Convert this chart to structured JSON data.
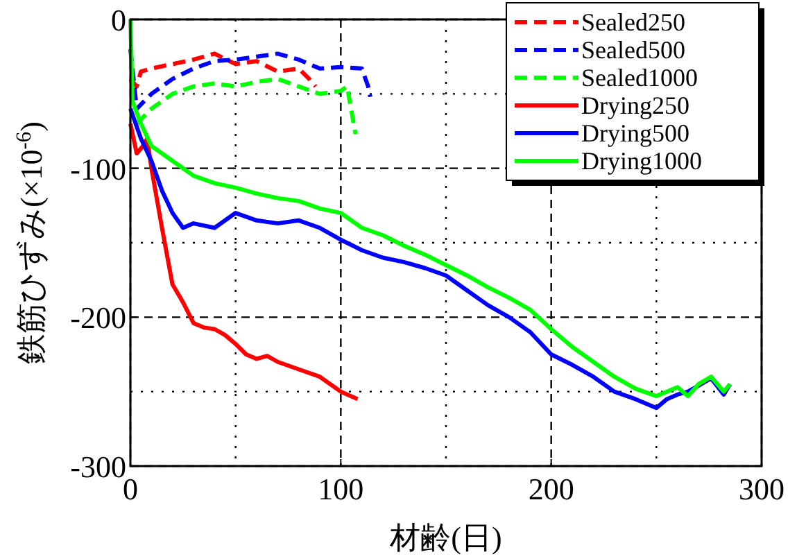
{
  "chart_data": {
    "type": "line",
    "xlabel": "材齢(日)",
    "ylabel": "鉄筋ひずみ(×10$^{-6}$)",
    "xlim": [
      0,
      300
    ],
    "ylim": [
      -300,
      0
    ],
    "xticks": [
      0,
      100,
      200,
      300
    ],
    "yticks": [
      -300,
      -200,
      -100,
      0
    ],
    "grid": true,
    "legend": "top right",
    "series": [
      {
        "name": "Sealed250",
        "color": "#ff0000",
        "line_style": "dashed",
        "x": [
          0,
          3,
          5,
          10,
          20,
          30,
          40,
          50,
          60,
          70,
          80,
          85,
          88
        ],
        "values": [
          -40,
          -45,
          -35,
          -33,
          -30,
          -27,
          -23,
          -30,
          -28,
          -35,
          -33,
          -40,
          -45
        ]
      },
      {
        "name": "Sealed500",
        "color": "#0000ff",
        "line_style": "dashed",
        "x": [
          0,
          3,
          10,
          20,
          30,
          40,
          50,
          60,
          70,
          80,
          90,
          100,
          110,
          113,
          114
        ],
        "values": [
          -20,
          -60,
          -50,
          -40,
          -33,
          -28,
          -27,
          -25,
          -23,
          -27,
          -33,
          -32,
          -33,
          -45,
          -52
        ]
      },
      {
        "name": "Sealed1000",
        "color": "#00ff00",
        "line_style": "dashed",
        "x": [
          3,
          10,
          20,
          30,
          40,
          50,
          60,
          70,
          80,
          90,
          100,
          103,
          107
        ],
        "values": [
          -70,
          -60,
          -50,
          -45,
          -43,
          -45,
          -42,
          -40,
          -45,
          -50,
          -48,
          -45,
          -77
        ]
      },
      {
        "name": "Drying250",
        "color": "#ff0000",
        "line_style": "solid",
        "x": [
          0,
          3,
          6,
          8,
          10,
          15,
          20,
          25,
          30,
          35,
          40,
          45,
          50,
          55,
          60,
          65,
          70,
          80,
          90,
          100,
          108
        ],
        "values": [
          -70,
          -90,
          -85,
          -80,
          -100,
          -140,
          -178,
          -190,
          -204,
          -207,
          -208,
          -212,
          -218,
          -225,
          -228,
          -226,
          -230,
          -235,
          -240,
          -250,
          -255
        ]
      },
      {
        "name": "Drying500",
        "color": "#0000ff",
        "line_style": "solid",
        "x": [
          0,
          5,
          10,
          15,
          20,
          25,
          30,
          40,
          50,
          60,
          70,
          80,
          90,
          100,
          110,
          120,
          130,
          140,
          150,
          160,
          170,
          180,
          190,
          200,
          210,
          220,
          230,
          240,
          250,
          255,
          260,
          265,
          270,
          276,
          282,
          285
        ],
        "values": [
          -60,
          -80,
          -95,
          -115,
          -130,
          -140,
          -137,
          -140,
          -130,
          -135,
          -137,
          -135,
          -140,
          -148,
          -155,
          -160,
          -163,
          -167,
          -172,
          -182,
          -192,
          -200,
          -210,
          -225,
          -232,
          -240,
          -250,
          -255,
          -261,
          -255,
          -252,
          -250,
          -246,
          -241,
          -252,
          -245
        ]
      },
      {
        "name": "Drying1000",
        "color": "#00ff00",
        "line_style": "solid",
        "x": [
          0,
          1,
          5,
          10,
          20,
          30,
          40,
          50,
          60,
          70,
          80,
          90,
          100,
          110,
          120,
          130,
          140,
          150,
          160,
          170,
          180,
          190,
          200,
          210,
          220,
          230,
          240,
          250,
          255,
          260,
          265,
          270,
          276,
          282,
          285
        ],
        "values": [
          0,
          -55,
          -70,
          -85,
          -95,
          -105,
          -110,
          -113,
          -117,
          -120,
          -122,
          -127,
          -130,
          -140,
          -145,
          -152,
          -158,
          -165,
          -172,
          -180,
          -187,
          -195,
          -208,
          -220,
          -230,
          -240,
          -248,
          -253,
          -250,
          -247,
          -253,
          -245,
          -240,
          -250,
          -245
        ]
      }
    ]
  }
}
